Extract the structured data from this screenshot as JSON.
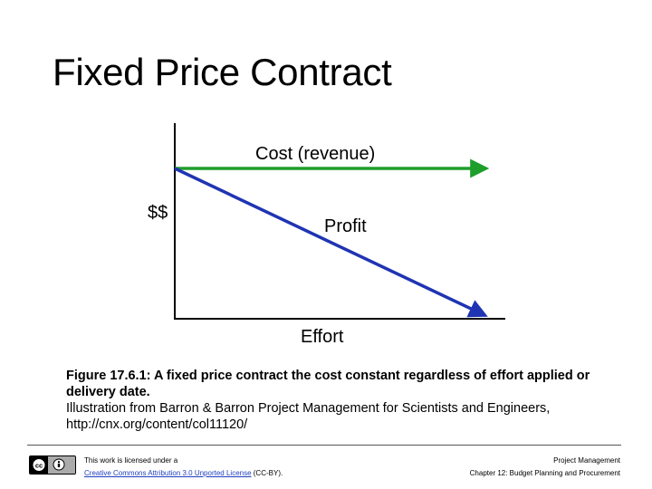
{
  "slide": {
    "title": "Fixed Price Contract"
  },
  "diagram": {
    "y_axis_label": "$$",
    "x_axis_label": "Effort",
    "cost_label": "Cost (revenue)",
    "profit_label": "Profit",
    "colors": {
      "cost_line": "#1e9e2a",
      "profit_line": "#1f34b3",
      "axis": "#000000"
    }
  },
  "caption": {
    "line1": "Figure 17.6.1: A fixed price contract the cost constant regardless of effort applied or delivery date.",
    "line2": "Illustration from Barron & Barron Project Management for Scientists and Engineers, http://cnx.org/content/col11120/"
  },
  "footer": {
    "license_prefix": "This work is licensed under a",
    "license_link": "Creative Commons Attribution 3.0 Unported License",
    "license_suffix": " (CC-BY).",
    "course": "Project Management",
    "chapter": "Chapter 12: Budget Planning and Procurement"
  }
}
